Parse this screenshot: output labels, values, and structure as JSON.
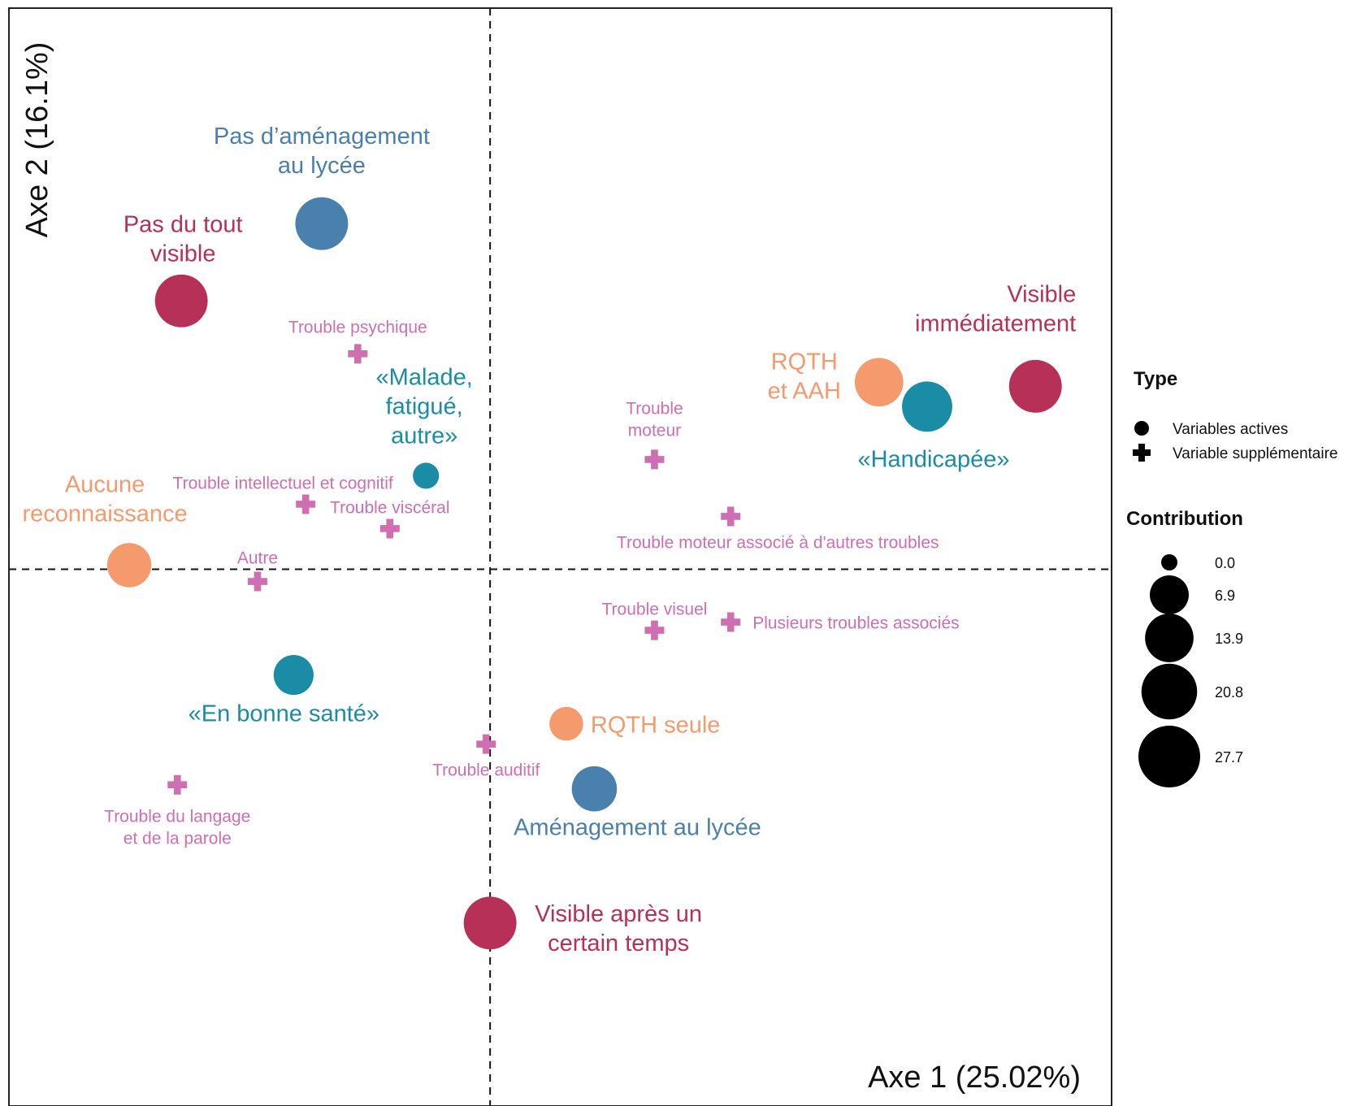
{
  "chart_data": {
    "type": "scatter",
    "xlabel": "Axe 1 (25.02%)",
    "ylabel": "Axe 2 (16.1%)",
    "xlim": [
      -1.2,
      1.55
    ],
    "ylim": [
      -1.32,
      1.38
    ],
    "reference_lines": {
      "x": 0,
      "y": 0
    },
    "colors": {
      "visibility": "#B73058",
      "amenagement": "#4A80AE",
      "reconnaissance": "#F49A6C",
      "sante": "#1A8CA6",
      "trouble": "#D06EB2"
    },
    "active_points": [
      {
        "label": "Pas d’aménagement au lycée",
        "lines": [
          "Pas d’aménagement",
          "au lycée"
        ],
        "x": -0.42,
        "y": 0.85,
        "contribution": 17.8,
        "group": "amenagement"
      },
      {
        "label": "Pas du tout visible",
        "lines": [
          "Pas du tout",
          "visible"
        ],
        "x": -0.77,
        "y": 0.66,
        "contribution": 17.8,
        "group": "visibility"
      },
      {
        "label": "Visible immédiatement",
        "lines": [
          "Visible",
          "immédiatement"
        ],
        "x": 1.36,
        "y": 0.45,
        "contribution": 17.8,
        "group": "visibility"
      },
      {
        "label": "RQTH et AAH",
        "lines": [
          "RQTH",
          "et AAH"
        ],
        "x": 0.97,
        "y": 0.46,
        "contribution": 13.9,
        "group": "reconnaissance"
      },
      {
        "label": "«Handicapée»",
        "lines": [
          "«Handicapée»"
        ],
        "x": 1.09,
        "y": 0.4,
        "contribution": 15.5,
        "group": "sante"
      },
      {
        "label": "«Malade, fatigué, autre»",
        "lines": [
          "«Malade,",
          "fatigué,",
          "autre»"
        ],
        "x": -0.16,
        "y": 0.23,
        "contribution": 1.3,
        "group": "sante"
      },
      {
        "label": "Aucune reconnaissance",
        "lines": [
          "Aucune",
          "reconnaissance"
        ],
        "x": -0.9,
        "y": 0.01,
        "contribution": 10.5,
        "group": "reconnaissance"
      },
      {
        "label": "«En bonne santé»",
        "lines": [
          "«En bonne santé»"
        ],
        "x": -0.49,
        "y": -0.26,
        "contribution": 7.5,
        "group": "sante"
      },
      {
        "label": "RQTH seule",
        "lines": [
          "RQTH seule"
        ],
        "x": 0.19,
        "y": -0.38,
        "contribution": 4.1,
        "group": "reconnaissance"
      },
      {
        "label": "Aménagement au lycée",
        "lines": [
          "Aménagement au lycée"
        ],
        "x": 0.26,
        "y": -0.54,
        "contribution": 11.2,
        "group": "amenagement"
      },
      {
        "label": "Visible après un certain temps",
        "lines": [
          "Visible après un",
          "certain temps"
        ],
        "x": 0.0,
        "y": -0.87,
        "contribution": 17.8,
        "group": "visibility"
      }
    ],
    "supplementary_points": [
      {
        "label": "Trouble psychique",
        "lines": [
          "Trouble psychique"
        ],
        "x": -0.33,
        "y": 0.53
      },
      {
        "label": "Trouble moteur",
        "lines": [
          "Trouble",
          "moteur"
        ],
        "x": 0.41,
        "y": 0.27
      },
      {
        "label": "Trouble intellectuel et cognitif",
        "lines": [
          "Trouble intellectuel et cognitif"
        ],
        "x": -0.46,
        "y": 0.16
      },
      {
        "label": "Trouble viscéral",
        "lines": [
          "Trouble viscéral"
        ],
        "x": -0.25,
        "y": 0.1
      },
      {
        "label": "Trouble moteur associé à d'autres troubles",
        "lines": [
          "Trouble moteur associé à d'autres troubles"
        ],
        "x": 0.6,
        "y": 0.13
      },
      {
        "label": "Autre",
        "lines": [
          "Autre"
        ],
        "x": -0.58,
        "y": -0.03
      },
      {
        "label": "Trouble visuel",
        "lines": [
          "Trouble visuel"
        ],
        "x": 0.41,
        "y": -0.15
      },
      {
        "label": "Plusieurs troubles associés",
        "lines": [
          "Plusieurs troubles associés"
        ],
        "x": 0.6,
        "y": -0.13
      },
      {
        "label": "Trouble auditif",
        "lines": [
          "Trouble auditif"
        ],
        "x": -0.01,
        "y": -0.43
      },
      {
        "label": "Trouble du langage et de la parole",
        "lines": [
          "Trouble du langage",
          "et de la parole"
        ],
        "x": -0.78,
        "y": -0.53
      }
    ],
    "legend": {
      "placement": "right",
      "type_title": "Type",
      "type_items": [
        {
          "label": "Variables actives",
          "shape": "circle"
        },
        {
          "label": "Variable supplémentaire",
          "shape": "cross"
        }
      ],
      "size_title": "Contribution",
      "size_items": [
        {
          "label": "0.0",
          "value": 0.0
        },
        {
          "label": "6.9",
          "value": 6.9
        },
        {
          "label": "13.9",
          "value": 13.9
        },
        {
          "label": "20.8",
          "value": 20.8
        },
        {
          "label": "27.7",
          "value": 27.7
        }
      ]
    }
  }
}
